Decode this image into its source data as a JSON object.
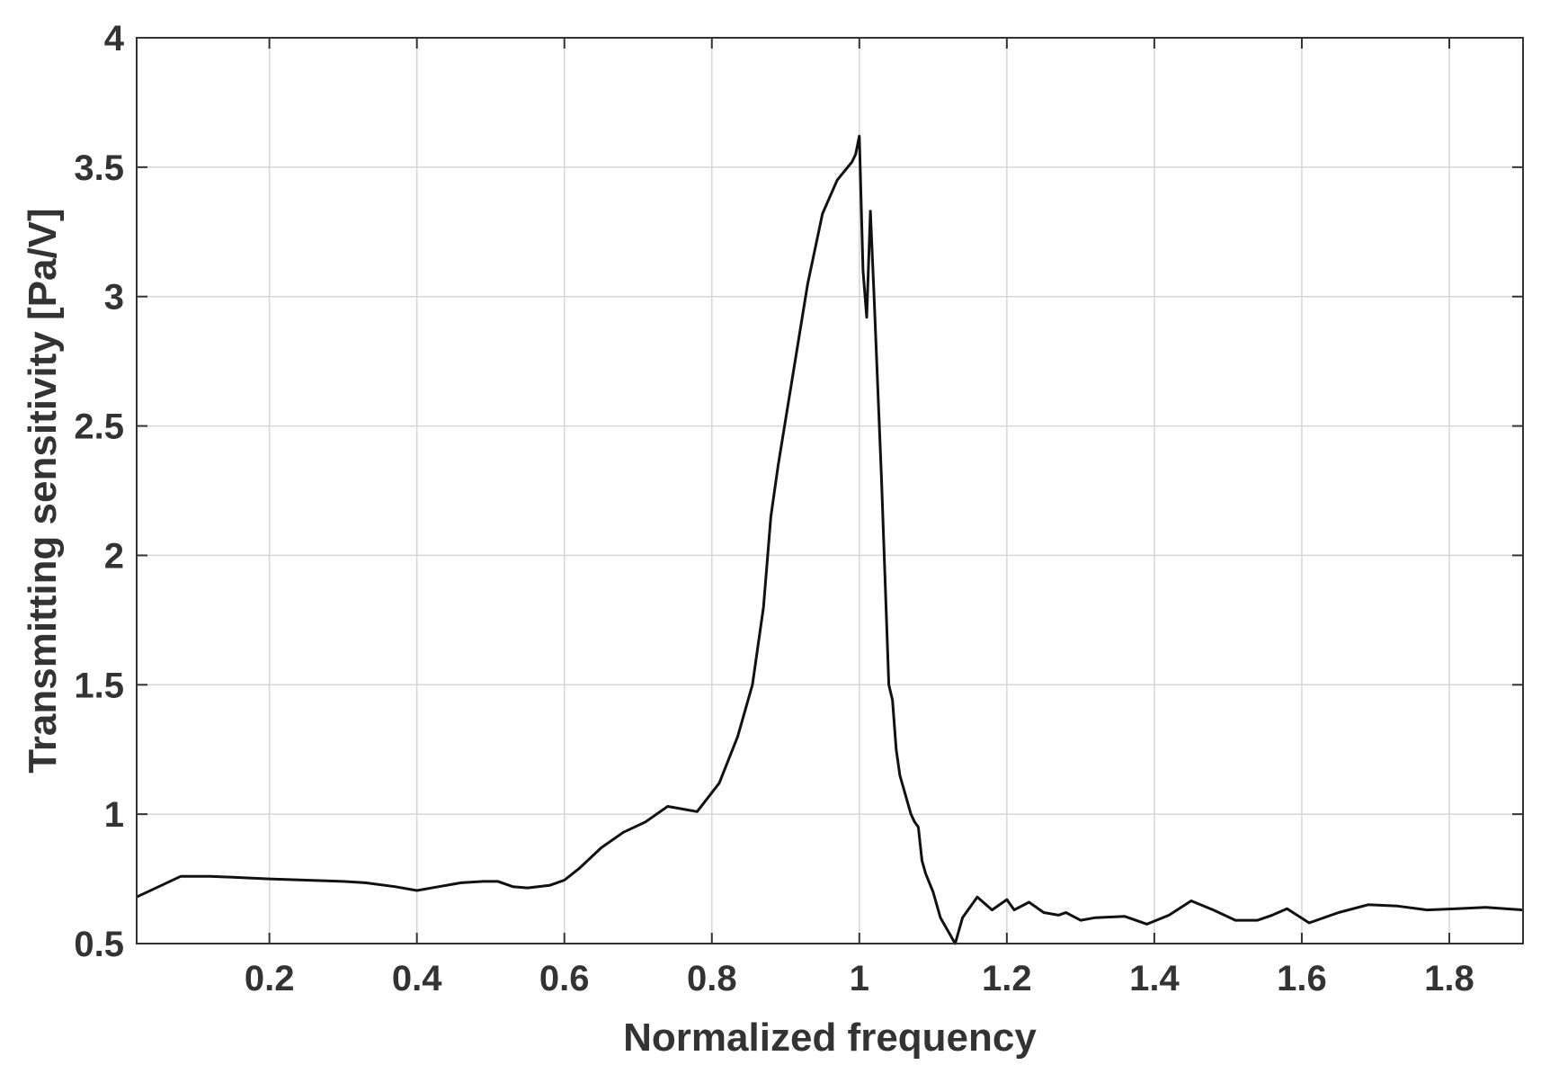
{
  "chart_data": {
    "type": "line",
    "xlabel": "Normalized frequency",
    "ylabel": "Transmitting sensitivity [Pa/V]",
    "xlim": [
      0.02,
      1.9
    ],
    "ylim": [
      0.5,
      4
    ],
    "xticks": [
      0.2,
      0.4,
      0.6,
      0.8,
      1,
      1.2,
      1.4,
      1.6,
      1.8
    ],
    "yticks": [
      0.5,
      1,
      1.5,
      2,
      2.5,
      3,
      3.5,
      4
    ],
    "grid": true,
    "line_color": "#111111",
    "series": [
      {
        "x": [
          0.02,
          0.05,
          0.08,
          0.12,
          0.16,
          0.2,
          0.25,
          0.3,
          0.33,
          0.37,
          0.4,
          0.43,
          0.46,
          0.49,
          0.51,
          0.53,
          0.55,
          0.58,
          0.6,
          0.62,
          0.65,
          0.68,
          0.71,
          0.74,
          0.76,
          0.78,
          0.81,
          0.835,
          0.855,
          0.87,
          0.88,
          0.89,
          0.91,
          0.93,
          0.95,
          0.97,
          0.99,
          0.995,
          1.0,
          1.005,
          1.01,
          1.015,
          1.02,
          1.03,
          1.04,
          1.045,
          1.05,
          1.055,
          1.06,
          1.065,
          1.07,
          1.075,
          1.08,
          1.085,
          1.09,
          1.1,
          1.11,
          1.12,
          1.13,
          1.14,
          1.16,
          1.18,
          1.2,
          1.21,
          1.23,
          1.25,
          1.27,
          1.28,
          1.3,
          1.32,
          1.36,
          1.39,
          1.42,
          1.45,
          1.48,
          1.51,
          1.54,
          1.56,
          1.58,
          1.61,
          1.65,
          1.69,
          1.73,
          1.77,
          1.81,
          1.85,
          1.9
        ],
        "y": [
          0.68,
          0.72,
          0.76,
          0.76,
          0.755,
          0.75,
          0.745,
          0.74,
          0.735,
          0.72,
          0.705,
          0.72,
          0.735,
          0.74,
          0.74,
          0.72,
          0.715,
          0.725,
          0.745,
          0.79,
          0.87,
          0.93,
          0.97,
          1.03,
          1.02,
          1.01,
          1.12,
          1.3,
          1.5,
          1.8,
          2.15,
          2.35,
          2.7,
          3.05,
          3.32,
          3.45,
          3.52,
          3.55,
          3.62,
          3.1,
          2.92,
          3.33,
          3.0,
          2.3,
          1.5,
          1.44,
          1.25,
          1.15,
          1.1,
          1.05,
          1.0,
          0.97,
          0.95,
          0.82,
          0.77,
          0.7,
          0.6,
          0.55,
          0.5,
          0.6,
          0.68,
          0.63,
          0.67,
          0.63,
          0.66,
          0.62,
          0.61,
          0.62,
          0.59,
          0.6,
          0.605,
          0.575,
          0.61,
          0.665,
          0.63,
          0.59,
          0.59,
          0.61,
          0.635,
          0.58,
          0.62,
          0.65,
          0.645,
          0.63,
          0.635,
          0.64,
          0.63
        ]
      }
    ]
  }
}
